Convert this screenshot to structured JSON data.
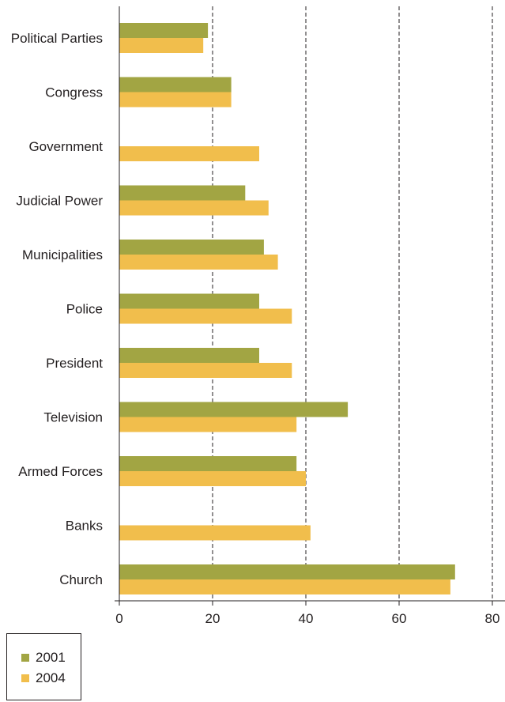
{
  "chart_data": {
    "type": "bar",
    "orientation": "horizontal",
    "categories": [
      "Political Parties",
      "Congress",
      "Government",
      "Judicial Power",
      "Municipalities",
      "Police",
      "President",
      "Television",
      "Armed Forces",
      "Banks",
      "Church"
    ],
    "series": [
      {
        "name": "2001",
        "color": "#a2a543",
        "values": [
          19,
          24,
          null,
          27,
          31,
          30,
          30,
          49,
          38,
          null,
          72
        ]
      },
      {
        "name": "2004",
        "color": "#f1be4c",
        "values": [
          18,
          24,
          30,
          32,
          34,
          37,
          37,
          38,
          40,
          41,
          71
        ]
      }
    ],
    "xlim": [
      0,
      82
    ],
    "xticks": [
      0,
      20,
      40,
      60,
      80
    ],
    "grid": "vertical dashed lines at 20, 40, 60, 80",
    "legend_position": "bottom-left",
    "title": "",
    "xlabel": "",
    "ylabel": ""
  }
}
